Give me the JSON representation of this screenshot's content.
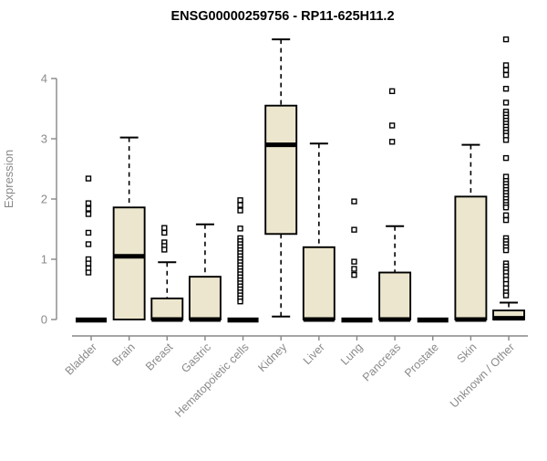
{
  "chart_data": {
    "type": "boxplot",
    "title": "ENSG00000259756 - RP11-625H11.2",
    "ylabel": "Expression",
    "xlabel": "",
    "ylim": [
      0,
      4.65
    ],
    "yticks": [
      0,
      1,
      2,
      3,
      4
    ],
    "grid": false,
    "legend_position": "none",
    "categories": [
      "Bladder",
      "Brain",
      "Breast",
      "Gastric",
      "Hematopoietic cells",
      "Kidney",
      "Liver",
      "Lung",
      "Pancreas",
      "Prostate",
      "Skin",
      "Unknown / Other"
    ],
    "boxes": [
      {
        "category": "Bladder",
        "q1": 0,
        "median": 0,
        "q3": 0,
        "whisker_low": 0,
        "whisker_high": 0,
        "outliers": [
          2.34,
          1.93,
          1.84,
          1.75,
          1.44,
          1.25,
          1.0,
          0.93,
          0.85,
          0.78
        ]
      },
      {
        "category": "Brain",
        "q1": 0,
        "median": 1.05,
        "q3": 1.86,
        "whisker_low": 0,
        "whisker_high": 3.02,
        "outliers": []
      },
      {
        "category": "Breast",
        "q1": 0,
        "median": 0,
        "q3": 0.35,
        "whisker_low": 0,
        "whisker_high": 0.95,
        "outliers": [
          1.52,
          1.44,
          1.28,
          1.22,
          1.16
        ]
      },
      {
        "category": "Gastric",
        "q1": 0,
        "median": 0,
        "q3": 0.71,
        "whisker_low": 0,
        "whisker_high": 1.58,
        "outliers": []
      },
      {
        "category": "Hematopoietic cells",
        "q1": 0,
        "median": 0,
        "q3": 0,
        "whisker_low": 0,
        "whisker_high": 0,
        "outliers": [
          1.98,
          1.9,
          1.81,
          1.51,
          1.35,
          1.3,
          1.25,
          1.2,
          1.15,
          1.1,
          1.05,
          1.0,
          0.95,
          0.9,
          0.85,
          0.8,
          0.75,
          0.7,
          0.65,
          0.6,
          0.55,
          0.5,
          0.45,
          0.4,
          0.35,
          0.3
        ]
      },
      {
        "category": "Kidney",
        "q1": 1.42,
        "median": 2.9,
        "q3": 3.55,
        "whisker_low": 0.05,
        "whisker_high": 4.65,
        "outliers": []
      },
      {
        "category": "Liver",
        "q1": 0,
        "median": 0,
        "q3": 1.2,
        "whisker_low": 0,
        "whisker_high": 2.92,
        "outliers": []
      },
      {
        "category": "Lung",
        "q1": 0,
        "median": 0,
        "q3": 0,
        "whisker_low": 0,
        "whisker_high": 0,
        "outliers": [
          1.96,
          1.49,
          0.96,
          0.84,
          0.74
        ]
      },
      {
        "category": "Pancreas",
        "q1": 0,
        "median": 0,
        "q3": 0.78,
        "whisker_low": 0,
        "whisker_high": 1.55,
        "outliers": [
          3.79,
          3.22,
          2.95
        ]
      },
      {
        "category": "Prostate",
        "q1": 0,
        "median": 0,
        "q3": 0,
        "whisker_low": 0,
        "whisker_high": 0,
        "outliers": []
      },
      {
        "category": "Skin",
        "q1": 0,
        "median": 0,
        "q3": 2.04,
        "whisker_low": 0,
        "whisker_high": 2.9,
        "outliers": []
      },
      {
        "category": "Unknown / Other",
        "q1": 0,
        "median": 0.02,
        "q3": 0.15,
        "whisker_low": 0,
        "whisker_high": 0.28,
        "outliers": [
          4.65,
          4.22,
          4.14,
          4.06,
          3.83,
          3.6,
          3.45,
          3.4,
          3.35,
          3.3,
          3.25,
          3.2,
          3.15,
          3.1,
          3.05,
          2.98,
          2.68,
          2.37,
          2.3,
          2.25,
          2.2,
          2.15,
          2.1,
          2.05,
          2.0,
          1.95,
          1.9,
          1.86,
          1.73,
          1.65,
          1.35,
          1.3,
          1.25,
          1.2,
          1.15,
          0.93,
          0.88,
          0.83,
          0.78,
          0.72,
          0.66,
          0.59,
          0.52,
          0.45,
          0.4
        ]
      }
    ],
    "colors": {
      "box_fill": "#ebe6cd",
      "box_stroke": "#000000",
      "median_color": "#000000",
      "whisker_color": "#000000",
      "outlier_stroke": "#000000",
      "outlier_fill": "#ffffff",
      "axis_color": "#878787",
      "text_color": "#8a8a8a",
      "title_color": "#000000",
      "background": "#ffffff"
    }
  }
}
